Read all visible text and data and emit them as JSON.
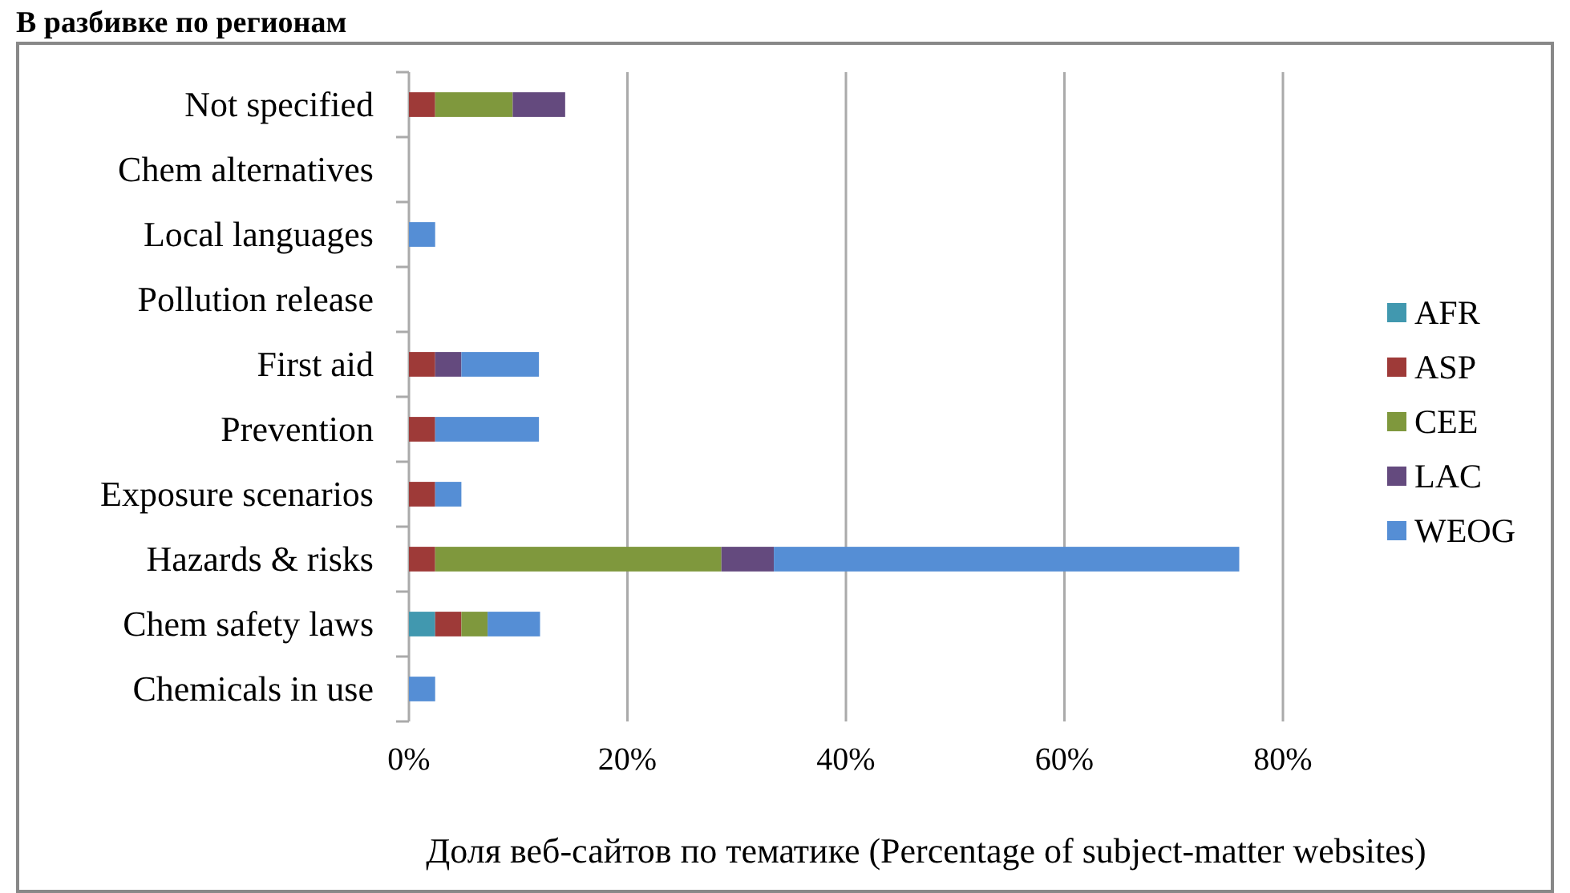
{
  "chart_data": {
    "type": "bar",
    "orientation": "horizontal",
    "stacked": true,
    "title": "В разбивке по регионам",
    "xlabel": "Доля веб-сайтов по тематике (Percentage of subject-matter websites)",
    "categories": [
      "Not specified",
      "Chem alternatives",
      "Local languages",
      "Pollution release",
      "First aid",
      "Prevention",
      "Exposure scenarios",
      "Hazards & risks",
      "Chem safety laws",
      "Chemicals in use"
    ],
    "series": [
      {
        "name": "AFR",
        "color": "#4198af",
        "values": [
          0,
          0,
          0,
          0,
          0,
          0,
          0,
          0,
          2.4,
          0
        ]
      },
      {
        "name": "ASP",
        "color": "#9e3a38",
        "values": [
          2.4,
          0,
          0,
          0,
          2.4,
          2.4,
          2.4,
          2.4,
          2.4,
          0
        ]
      },
      {
        "name": "CEE",
        "color": "#7f983d",
        "values": [
          7.1,
          0,
          0,
          0,
          0,
          0,
          0,
          26.2,
          2.4,
          0
        ]
      },
      {
        "name": "LAC",
        "color": "#644a7e",
        "values": [
          4.8,
          0,
          0,
          0,
          2.4,
          0,
          0,
          4.8,
          0,
          0
        ]
      },
      {
        "name": "WEOG",
        "color": "#558ed5",
        "values": [
          0,
          0,
          2.4,
          0,
          7.1,
          9.5,
          2.4,
          42.6,
          4.8,
          2.4
        ]
      }
    ],
    "xlim": [
      0,
      80
    ],
    "xticks": [
      {
        "value": 0,
        "label": "0%"
      },
      {
        "value": 20,
        "label": "20%"
      },
      {
        "value": 40,
        "label": "40%"
      },
      {
        "value": 60,
        "label": "60%"
      },
      {
        "value": 80,
        "label": "80%"
      }
    ],
    "grid": "x",
    "legend": "right"
  }
}
